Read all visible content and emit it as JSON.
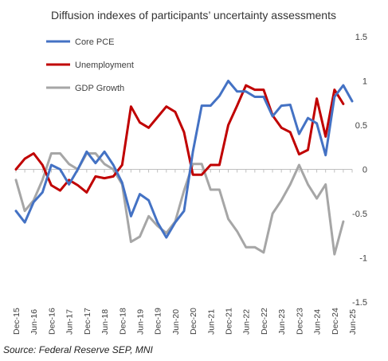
{
  "chart_data": {
    "type": "line",
    "title": "Diffusion indexes of participants’ uncertainty assessments",
    "x": [
      "Dec-15",
      "Mar-16",
      "Jun-16",
      "Sep-16",
      "Dec-16",
      "Mar-17",
      "Jun-17",
      "Sep-17",
      "Dec-17",
      "Mar-18",
      "Jun-18",
      "Sep-18",
      "Dec-18",
      "Mar-19",
      "Jun-19",
      "Sep-19",
      "Dec-19",
      "Mar-20",
      "Jun-20",
      "Sep-20",
      "Dec-20",
      "Mar-21",
      "Jun-21",
      "Sep-21",
      "Dec-21",
      "Mar-22",
      "Jun-22",
      "Sep-22",
      "Dec-22",
      "Mar-23",
      "Jun-23",
      "Sep-23",
      "Dec-23",
      "Mar-24",
      "Jun-24",
      "Sep-24",
      "Dec-24",
      "Mar-25",
      "Jun-25"
    ],
    "x_tick_labels": [
      "Dec-15",
      "Jun-16",
      "Dec-16",
      "Jun-17",
      "Dec-17",
      "Jun-18",
      "Dec-18",
      "Jun-19",
      "Dec-19",
      "Jun-20",
      "Dec-20",
      "Jun-21",
      "Dec-21",
      "Jun-22",
      "Dec-22",
      "Jun-23",
      "Dec-23",
      "Jun-24",
      "Dec-24",
      "Jun-25"
    ],
    "y_ticks": [
      1.5,
      1,
      0.5,
      0,
      -0.5,
      -1,
      -1.5
    ],
    "y_tick_labels": [
      "1.5",
      "1",
      "0.5",
      "0",
      "-0.5",
      "-1",
      "-1.5"
    ],
    "ylim": [
      -1.5,
      1.5
    ],
    "legend_position": "top-left",
    "series": [
      {
        "name": "Core PCE",
        "color": "#4472C4",
        "values": [
          -0.47,
          -0.6,
          -0.37,
          -0.26,
          0.05,
          0.0,
          -0.17,
          0.0,
          0.2,
          0.07,
          0.2,
          0.05,
          -0.15,
          -0.53,
          -0.28,
          -0.35,
          -0.6,
          -0.77,
          -0.6,
          -0.47,
          0.2,
          0.72,
          0.72,
          0.83,
          1.0,
          0.88,
          0.88,
          0.82,
          0.82,
          0.6,
          0.72,
          0.73,
          0.4,
          0.58,
          0.52,
          0.16,
          0.82,
          0.95,
          0.77
        ]
      },
      {
        "name": "Unemployment",
        "color": "#C00000",
        "values": [
          0.0,
          0.12,
          0.18,
          0.05,
          -0.18,
          -0.24,
          -0.12,
          -0.18,
          -0.26,
          -0.08,
          -0.1,
          -0.08,
          0.05,
          0.71,
          0.53,
          0.47,
          0.59,
          0.71,
          0.65,
          0.42,
          -0.06,
          -0.06,
          0.05,
          0.05,
          0.5,
          0.72,
          0.95,
          0.9,
          0.9,
          0.61,
          0.47,
          0.42,
          0.17,
          0.22,
          0.8,
          0.37,
          0.9,
          0.74,
          null
        ]
      },
      {
        "name": "GDP Growth",
        "color": "#A6A6A6",
        "values": [
          -0.12,
          -0.47,
          -0.35,
          -0.12,
          0.18,
          0.18,
          0.06,
          0.0,
          0.18,
          0.18,
          0.06,
          0.0,
          -0.17,
          -0.82,
          -0.76,
          -0.53,
          -0.64,
          -0.72,
          -0.59,
          -0.24,
          0.06,
          0.06,
          -0.23,
          -0.23,
          -0.56,
          -0.7,
          -0.88,
          -0.88,
          -0.94,
          -0.5,
          -0.35,
          -0.17,
          0.05,
          -0.17,
          -0.33,
          -0.17,
          -0.96,
          -0.59,
          null
        ]
      }
    ]
  },
  "footer": {
    "source": "Source: Federal Reserve SEP, MNI"
  }
}
